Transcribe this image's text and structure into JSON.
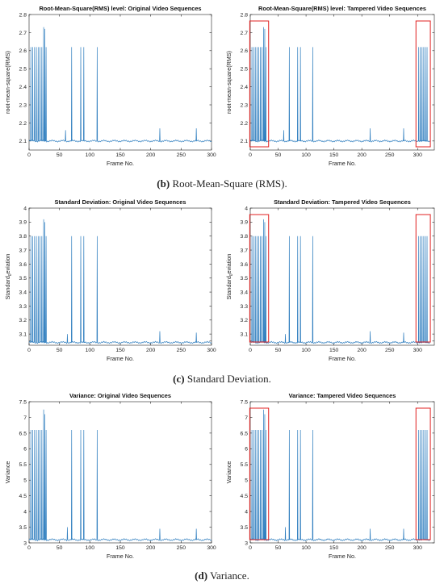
{
  "captions": [
    {
      "letter": "b",
      "text": " Root-Mean-Square (RMS)."
    },
    {
      "letter": "c",
      "text": " Standard Deviation."
    },
    {
      "letter": "d",
      "text": " Variance."
    }
  ],
  "colors": {
    "series": "#2f7ebf",
    "highlight": "#e02020",
    "axis": "#222222",
    "panel_bg": "#ffffff",
    "page_bg": "#f2f2f2"
  },
  "chart_data": [
    {
      "type": "line",
      "title": "Root-Mean-Square(RMS) level: Original Video Sequences",
      "xlabel": "Frame No.",
      "ylabel": "root-mean-square(RMS)",
      "ylabel_sub": "",
      "xlim": [
        0,
        300
      ],
      "ylim": [
        2.05,
        2.8
      ],
      "xticks": [
        0,
        50,
        100,
        150,
        200,
        250,
        300
      ],
      "yticks": [
        2.1,
        2.2,
        2.3,
        2.4,
        2.5,
        2.6,
        2.7,
        2.8
      ],
      "tick_labels": [
        "2.1",
        "2.2",
        "2.3",
        "2.4",
        "2.5",
        "2.6",
        "2.7",
        "2.8"
      ],
      "baseline": 2.1,
      "spikes": [
        [
          3,
          2.62
        ],
        [
          6,
          2.62
        ],
        [
          9,
          2.62
        ],
        [
          12,
          2.62
        ],
        [
          15,
          2.62
        ],
        [
          18,
          2.62
        ],
        [
          21,
          2.62
        ],
        [
          24,
          2.73
        ],
        [
          26,
          2.72
        ],
        [
          28,
          2.62
        ],
        [
          60,
          2.16
        ],
        [
          70,
          2.62
        ],
        [
          85,
          2.62
        ],
        [
          90,
          2.62
        ],
        [
          112,
          2.62
        ],
        [
          215,
          2.17
        ],
        [
          275,
          2.17
        ]
      ],
      "highlight_x": []
    },
    {
      "type": "line",
      "title": "Root-Mean-Square(RMS) level: Tampered Video Sequences",
      "xlabel": "Frame No.",
      "ylabel": "root-mean-square(RMS)",
      "ylabel_sub": "",
      "xlim": [
        0,
        330
      ],
      "ylim": [
        2.05,
        2.8
      ],
      "xticks": [
        0,
        50,
        100,
        150,
        200,
        250,
        300
      ],
      "yticks": [
        2.1,
        2.2,
        2.3,
        2.4,
        2.5,
        2.6,
        2.7,
        2.8
      ],
      "tick_labels": [
        "2.1",
        "2.2",
        "2.3",
        "2.4",
        "2.5",
        "2.6",
        "2.7",
        "2.8"
      ],
      "baseline": 2.1,
      "spikes": [
        [
          3,
          2.62
        ],
        [
          6,
          2.62
        ],
        [
          9,
          2.62
        ],
        [
          12,
          2.62
        ],
        [
          15,
          2.62
        ],
        [
          18,
          2.62
        ],
        [
          21,
          2.62
        ],
        [
          24,
          2.73
        ],
        [
          26,
          2.72
        ],
        [
          28,
          2.62
        ],
        [
          60,
          2.16
        ],
        [
          70,
          2.62
        ],
        [
          85,
          2.62
        ],
        [
          90,
          2.62
        ],
        [
          112,
          2.62
        ],
        [
          215,
          2.17
        ],
        [
          275,
          2.17
        ],
        [
          302,
          2.62
        ],
        [
          305,
          2.62
        ],
        [
          308,
          2.62
        ],
        [
          311,
          2.62
        ],
        [
          314,
          2.62
        ],
        [
          317,
          2.62
        ]
      ],
      "highlight_x": [
        [
          2,
          30
        ],
        [
          300,
          320
        ]
      ]
    },
    {
      "type": "line",
      "title": "Standard Deviation: Original Video Sequences",
      "xlabel": "Frame No.",
      "ylabel": "Standard",
      "ylabel_sub": "0",
      "ylabel_tail": "eviation",
      "xlim": [
        0,
        300
      ],
      "ylim": [
        3.02,
        4.0
      ],
      "xticks": [
        0,
        50,
        100,
        150,
        200,
        250,
        300
      ],
      "yticks": [
        3.05,
        3.1,
        3.2,
        3.3,
        3.4,
        3.5,
        3.6,
        3.7,
        3.8,
        3.9,
        4.0
      ],
      "tick_labels": [
        "",
        "3.1",
        "3.2",
        "3.3",
        "3.4",
        "3.5",
        "3.6",
        "3.7",
        "3.8",
        "3.9",
        "4"
      ],
      "baseline": 3.04,
      "spikes": [
        [
          3,
          3.8
        ],
        [
          6,
          3.8
        ],
        [
          9,
          3.8
        ],
        [
          12,
          3.8
        ],
        [
          15,
          3.8
        ],
        [
          18,
          3.8
        ],
        [
          21,
          3.8
        ],
        [
          24,
          3.92
        ],
        [
          26,
          3.9
        ],
        [
          28,
          3.8
        ],
        [
          63,
          3.1
        ],
        [
          70,
          3.8
        ],
        [
          85,
          3.8
        ],
        [
          90,
          3.8
        ],
        [
          112,
          3.8
        ],
        [
          215,
          3.12
        ],
        [
          275,
          3.11
        ]
      ],
      "highlight_x": []
    },
    {
      "type": "line",
      "title": "Standard Deviation: Tampered Video Sequences",
      "xlabel": "Frame No.",
      "ylabel": "Standard",
      "ylabel_sub": "0",
      "ylabel_tail": "eviation",
      "xlim": [
        0,
        330
      ],
      "ylim": [
        3.02,
        4.0
      ],
      "xticks": [
        0,
        50,
        100,
        150,
        200,
        250,
        300
      ],
      "yticks": [
        3.05,
        3.1,
        3.2,
        3.3,
        3.4,
        3.5,
        3.6,
        3.7,
        3.8,
        3.9,
        4.0
      ],
      "tick_labels": [
        "",
        "3.1",
        "3.2",
        "3.3",
        "3.4",
        "3.5",
        "3.6",
        "3.7",
        "3.8",
        "3.9",
        "4"
      ],
      "baseline": 3.04,
      "spikes": [
        [
          3,
          3.8
        ],
        [
          6,
          3.8
        ],
        [
          9,
          3.8
        ],
        [
          12,
          3.8
        ],
        [
          15,
          3.8
        ],
        [
          18,
          3.8
        ],
        [
          21,
          3.8
        ],
        [
          24,
          3.92
        ],
        [
          26,
          3.9
        ],
        [
          28,
          3.8
        ],
        [
          63,
          3.1
        ],
        [
          70,
          3.8
        ],
        [
          85,
          3.8
        ],
        [
          90,
          3.8
        ],
        [
          112,
          3.8
        ],
        [
          215,
          3.12
        ],
        [
          275,
          3.11
        ],
        [
          302,
          3.8
        ],
        [
          305,
          3.8
        ],
        [
          308,
          3.8
        ],
        [
          311,
          3.8
        ],
        [
          314,
          3.8
        ],
        [
          317,
          3.8
        ]
      ],
      "highlight_x": [
        [
          2,
          30
        ],
        [
          300,
          320
        ]
      ]
    },
    {
      "type": "line",
      "title": "Variance: Original Video Sequences",
      "xlabel": "Frame No.",
      "ylabel": "Variance",
      "ylabel_sub": "",
      "xlim": [
        0,
        300
      ],
      "ylim": [
        3.0,
        7.5
      ],
      "xticks": [
        0,
        50,
        100,
        150,
        200,
        250,
        300
      ],
      "yticks": [
        3,
        3.5,
        4,
        4.5,
        5,
        5.5,
        6,
        6.5,
        7,
        7.5
      ],
      "tick_labels": [
        "3",
        "3.5",
        "4",
        "4.5",
        "5",
        "5.5",
        "6",
        "6.5",
        "7",
        "7.5"
      ],
      "baseline": 3.1,
      "spikes": [
        [
          3,
          6.6
        ],
        [
          6,
          6.6
        ],
        [
          9,
          6.6
        ],
        [
          12,
          6.6
        ],
        [
          15,
          6.6
        ],
        [
          18,
          6.6
        ],
        [
          21,
          6.6
        ],
        [
          24,
          7.25
        ],
        [
          26,
          7.1
        ],
        [
          28,
          6.6
        ],
        [
          63,
          3.5
        ],
        [
          70,
          6.6
        ],
        [
          85,
          6.6
        ],
        [
          90,
          6.6
        ],
        [
          112,
          6.6
        ],
        [
          215,
          3.45
        ],
        [
          275,
          3.45
        ]
      ],
      "highlight_x": []
    },
    {
      "type": "line",
      "title": "Variance: Tampered Video Sequences",
      "xlabel": "Frame No.",
      "ylabel": "Variance",
      "ylabel_sub": "",
      "xlim": [
        0,
        330
      ],
      "ylim": [
        3.0,
        7.5
      ],
      "xticks": [
        0,
        50,
        100,
        150,
        200,
        250,
        300
      ],
      "yticks": [
        3,
        3.5,
        4,
        4.5,
        5,
        5.5,
        6,
        6.5,
        7,
        7.5
      ],
      "tick_labels": [
        "3",
        "3.5",
        "4",
        "4.5",
        "5",
        "5.5",
        "6",
        "6.5",
        "7",
        "7.5"
      ],
      "baseline": 3.1,
      "spikes": [
        [
          3,
          6.6
        ],
        [
          6,
          6.6
        ],
        [
          9,
          6.6
        ],
        [
          12,
          6.6
        ],
        [
          15,
          6.6
        ],
        [
          18,
          6.6
        ],
        [
          21,
          6.6
        ],
        [
          24,
          7.25
        ],
        [
          26,
          7.1
        ],
        [
          28,
          6.6
        ],
        [
          63,
          3.5
        ],
        [
          70,
          6.6
        ],
        [
          85,
          6.6
        ],
        [
          90,
          6.6
        ],
        [
          112,
          6.6
        ],
        [
          215,
          3.45
        ],
        [
          275,
          3.45
        ],
        [
          302,
          6.6
        ],
        [
          305,
          6.6
        ],
        [
          308,
          6.6
        ],
        [
          311,
          6.6
        ],
        [
          314,
          6.6
        ],
        [
          317,
          6.6
        ]
      ],
      "highlight_x": [
        [
          2,
          30
        ],
        [
          300,
          320
        ]
      ]
    }
  ]
}
